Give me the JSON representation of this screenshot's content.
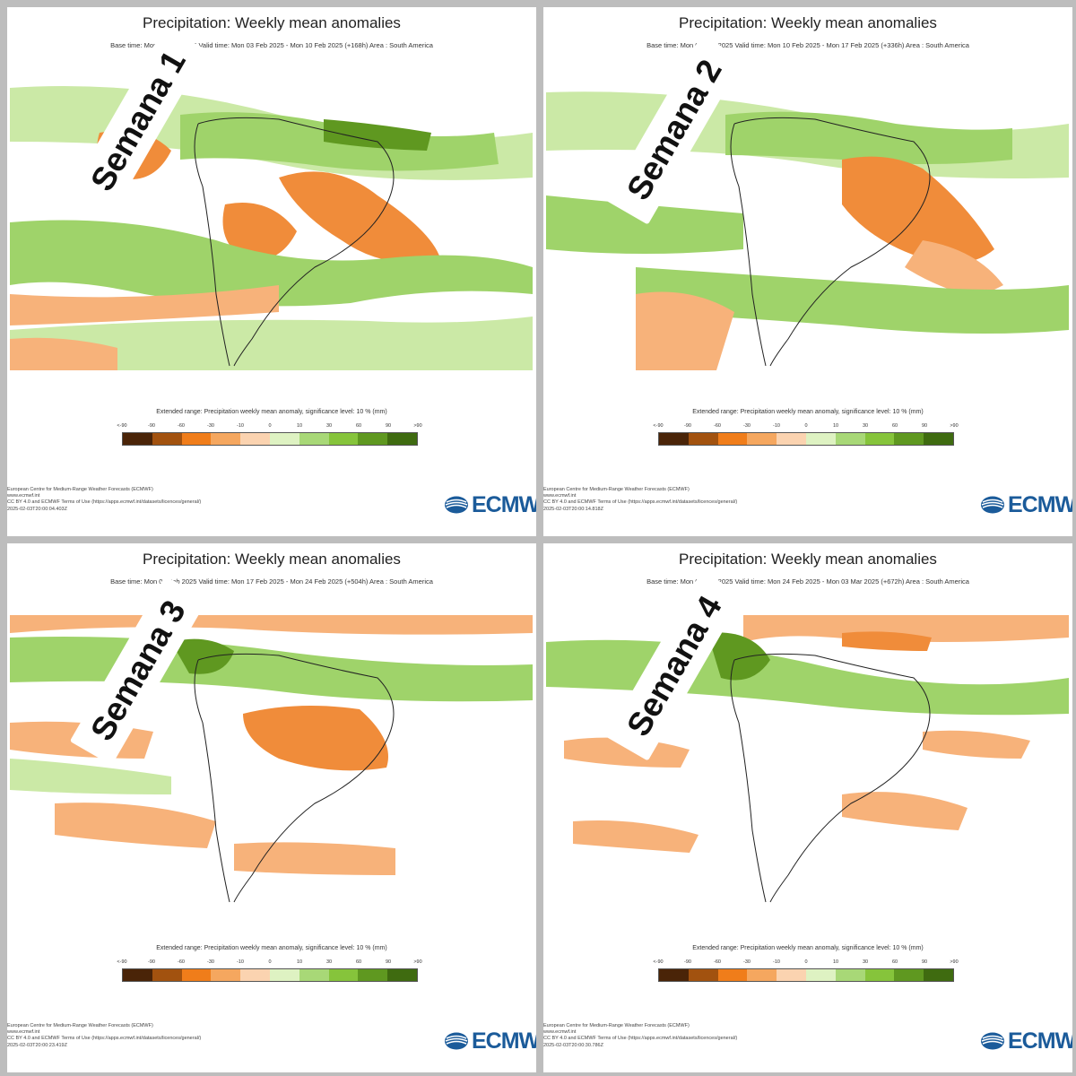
{
  "panels": [
    {
      "title": "Precipitation: Weekly mean anomalies",
      "subtitle": "Base time: Mon 03 Feb 2025 Valid time: Mon 03 Feb 2025 - Mon 10 Feb 2025 (+168h) Area : South America",
      "week_label": "Semana 1",
      "footer": [
        "European Centre for Medium-Range Weather Forecasts (ECMWF)",
        "www.ecmwf.int",
        "CC BY 4.0 and ECMWF Terms of Use (https://apps.ecmwf.int/datasets/licences/general/)",
        "2025-02-03T20:00:04.403Z"
      ]
    },
    {
      "title": "Precipitation: Weekly mean anomalies",
      "subtitle": "Base time: Mon 03 Feb 2025 Valid time: Mon 10 Feb 2025 - Mon 17 Feb 2025 (+336h) Area : South America",
      "week_label": "Semana 2",
      "footer": [
        "European Centre for Medium-Range Weather Forecasts (ECMWF)",
        "www.ecmwf.int",
        "CC BY 4.0 and ECMWF Terms of Use (https://apps.ecmwf.int/datasets/licences/general/)",
        "2025-02-03T20:00:14.818Z"
      ]
    },
    {
      "title": "Precipitation: Weekly mean anomalies",
      "subtitle": "Base time: Mon 03 Feb 2025 Valid time: Mon 17 Feb 2025 - Mon 24 Feb 2025 (+504h) Area : South America",
      "week_label": "Semana 3",
      "footer": [
        "European Centre for Medium-Range Weather Forecasts (ECMWF)",
        "www.ecmwf.int",
        "CC BY 4.0 and ECMWF Terms of Use (https://apps.ecmwf.int/datasets/licences/general/)",
        "2025-02-03T20:00:23.419Z"
      ]
    },
    {
      "title": "Precipitation: Weekly mean anomalies",
      "subtitle": "Base time: Mon 03 Feb 2025 Valid time: Mon 24 Feb 2025 - Mon 03 Mar 2025 (+672h) Area : South America",
      "week_label": "Semana 4",
      "footer": [
        "European Centre for Medium-Range Weather Forecasts (ECMWF)",
        "www.ecmwf.int",
        "CC BY 4.0 and ECMWF Terms of Use (https://apps.ecmwf.int/datasets/licences/general/)",
        "2025-02-03T20:00:30.786Z"
      ]
    }
  ],
  "legend": {
    "title": "Extended range: Precipitation weekly mean anomaly, significance level: 10 % (mm)",
    "ticks": [
      "<-90",
      "-90",
      "-60",
      "-30",
      "-10",
      "0",
      "10",
      "30",
      "60",
      "90",
      ">90"
    ],
    "colors": [
      "#4a2408",
      "#a2520f",
      "#f07d1a",
      "#f5a75f",
      "#fbd3b0",
      "#def2c2",
      "#a8d877",
      "#86c43b",
      "#5f9820",
      "#3f6b10"
    ]
  },
  "logo": {
    "text": "ECMWF"
  },
  "palette": {
    "dry_strong": "#f08c3a",
    "dry_moderate": "#f7b27a",
    "wet_light": "#cbe9a6",
    "wet_moderate": "#9fd36a",
    "wet_strong": "#5f9820",
    "coast": "#222222"
  }
}
